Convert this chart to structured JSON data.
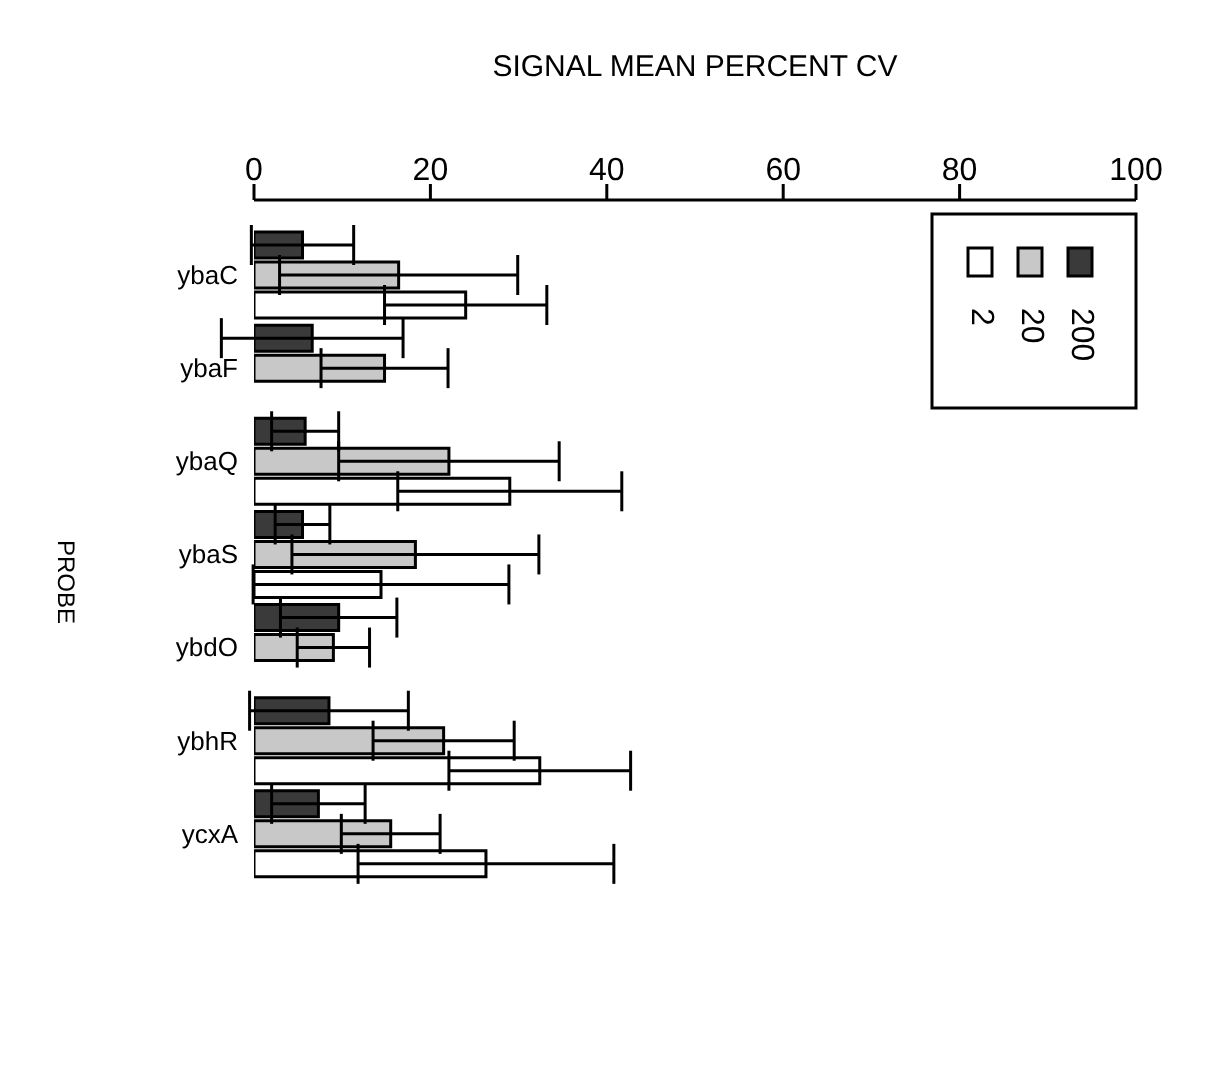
{
  "chart_data": {
    "type": "bar",
    "orientation": "horizontal",
    "xlabel": "SIGNAL MEAN PERCENT CV",
    "ylabel": "PROBE",
    "categories": [
      "ybaC",
      "ybaF",
      "ybaQ",
      "ybaS",
      "ybdO",
      "ybhR",
      "ycxA"
    ],
    "series": [
      {
        "name": "2",
        "color": "#ffffff",
        "values": [
          24,
          null,
          29,
          14.4,
          null,
          32.4,
          26.3
        ],
        "errors": [
          9.2,
          null,
          12.7,
          14.5,
          null,
          10.3,
          14.5
        ]
      },
      {
        "name": "20",
        "color": "#c8c8c8",
        "values": [
          16.4,
          14.8,
          22.1,
          18.3,
          9,
          21.5,
          15.5
        ],
        "errors": [
          13.5,
          7.2,
          12.5,
          14,
          4.1,
          8,
          5.6
        ]
      },
      {
        "name": "200",
        "color": "#3a3a3a",
        "values": [
          5.5,
          6.6,
          5.8,
          5.5,
          9.6,
          8.5,
          7.3
        ],
        "errors": [
          5.8,
          10.3,
          3.8,
          3.1,
          6.6,
          9,
          5.3
        ]
      }
    ],
    "xlim": [
      0,
      100
    ],
    "xticks": [
      0,
      20,
      40,
      60,
      80,
      100
    ],
    "legend": "top right",
    "grid": false
  }
}
